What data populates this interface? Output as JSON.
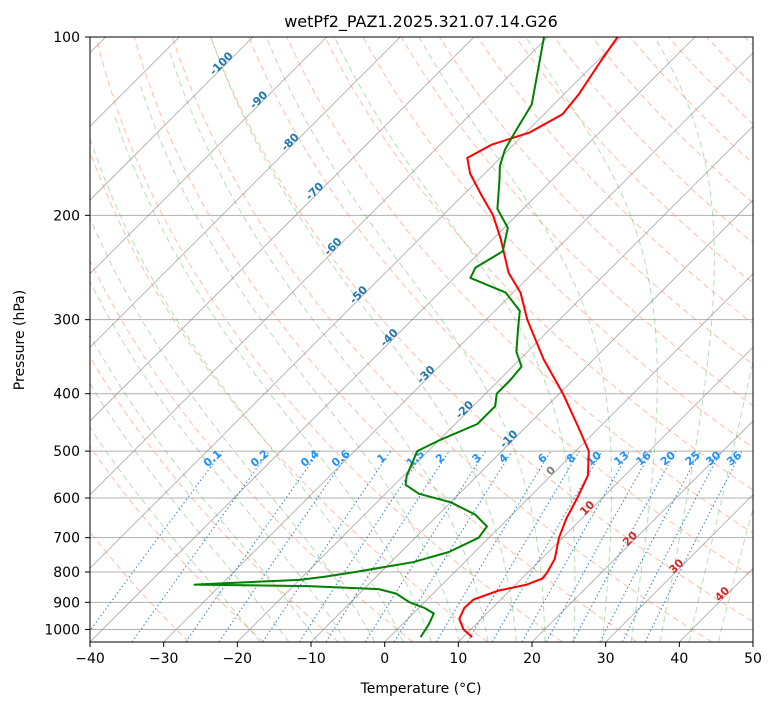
{
  "chart_data": {
    "type": "line",
    "subtype": "skew-t log-p diagram",
    "title": "wetPf2_PAZ1.2025.321.07.14.G26",
    "xlabel": "Temperature (°C)",
    "ylabel": "Pressure (hPa)",
    "xlim": [
      -40,
      50
    ],
    "ylim": [
      1050,
      100
    ],
    "y_scale": "log",
    "grid": true,
    "x_ticks": [
      -40,
      -30,
      -20,
      -10,
      0,
      10,
      20,
      30,
      40,
      50
    ],
    "y_ticks": [
      100,
      200,
      300,
      400,
      500,
      600,
      700,
      800,
      900,
      1000
    ],
    "series": [
      {
        "role": "temperature",
        "color": "#ff0000",
        "points": [
          {
            "p": 1030,
            "t": 11.2
          },
          {
            "p": 1000,
            "t": 9.0
          },
          {
            "p": 960,
            "t": 7.0
          },
          {
            "p": 920,
            "t": 6.2
          },
          {
            "p": 890,
            "t": 6.3
          },
          {
            "p": 860,
            "t": 8.5
          },
          {
            "p": 840,
            "t": 11.5
          },
          {
            "p": 820,
            "t": 12.8
          },
          {
            "p": 800,
            "t": 12.6
          },
          {
            "p": 760,
            "t": 11.8
          },
          {
            "p": 700,
            "t": 9.5
          },
          {
            "p": 650,
            "t": 7.9
          },
          {
            "p": 600,
            "t": 6.6
          },
          {
            "p": 550,
            "t": 5.0
          },
          {
            "p": 500,
            "t": 1.8
          },
          {
            "p": 450,
            "t": -3.5
          },
          {
            "p": 400,
            "t": -9.5
          },
          {
            "p": 350,
            "t": -16.8
          },
          {
            "p": 300,
            "t": -24.4
          },
          {
            "p": 270,
            "t": -29.0
          },
          {
            "p": 250,
            "t": -33.3
          },
          {
            "p": 220,
            "t": -38.8
          },
          {
            "p": 200,
            "t": -43.2
          },
          {
            "p": 185,
            "t": -47.5
          },
          {
            "p": 170,
            "t": -52.0
          },
          {
            "p": 160,
            "t": -54.5
          },
          {
            "p": 152,
            "t": -53.0
          },
          {
            "p": 145,
            "t": -49.5
          },
          {
            "p": 135,
            "t": -47.5
          },
          {
            "p": 125,
            "t": -48.0
          },
          {
            "p": 110,
            "t": -49.5
          },
          {
            "p": 100,
            "t": -50.5
          }
        ]
      },
      {
        "role": "dewpoint",
        "color": "#008000",
        "points": [
          {
            "p": 1030,
            "t": 4.2
          },
          {
            "p": 980,
            "t": 3.6
          },
          {
            "p": 940,
            "t": 2.8
          },
          {
            "p": 920,
            "t": 0.8
          },
          {
            "p": 900,
            "t": -2.0
          },
          {
            "p": 870,
            "t": -5.0
          },
          {
            "p": 855,
            "t": -8.0
          },
          {
            "p": 845,
            "t": -18.0
          },
          {
            "p": 840,
            "t": -33.6
          },
          {
            "p": 835,
            "t": -29.0
          },
          {
            "p": 825,
            "t": -20.0
          },
          {
            "p": 815,
            "t": -17.0
          },
          {
            "p": 800,
            "t": -13.5
          },
          {
            "p": 770,
            "t": -7.0
          },
          {
            "p": 740,
            "t": -3.5
          },
          {
            "p": 700,
            "t": -1.4
          },
          {
            "p": 670,
            "t": -1.8
          },
          {
            "p": 640,
            "t": -5.0
          },
          {
            "p": 610,
            "t": -10.0
          },
          {
            "p": 590,
            "t": -15.5
          },
          {
            "p": 570,
            "t": -18.5
          },
          {
            "p": 550,
            "t": -19.6
          },
          {
            "p": 520,
            "t": -20.7
          },
          {
            "p": 500,
            "t": -21.5
          },
          {
            "p": 480,
            "t": -20.0
          },
          {
            "p": 450,
            "t": -17.0
          },
          {
            "p": 420,
            "t": -17.0
          },
          {
            "p": 400,
            "t": -18.5
          },
          {
            "p": 380,
            "t": -18.5
          },
          {
            "p": 360,
            "t": -18.8
          },
          {
            "p": 340,
            "t": -21.5
          },
          {
            "p": 310,
            "t": -24.5
          },
          {
            "p": 290,
            "t": -26.6
          },
          {
            "p": 270,
            "t": -31.0
          },
          {
            "p": 255,
            "t": -37.8
          },
          {
            "p": 245,
            "t": -38.5
          },
          {
            "p": 230,
            "t": -37.0
          },
          {
            "p": 210,
            "t": -39.5
          },
          {
            "p": 195,
            "t": -43.5
          },
          {
            "p": 175,
            "t": -47.0
          },
          {
            "p": 165,
            "t": -49.0
          },
          {
            "p": 155,
            "t": -50.5
          },
          {
            "p": 145,
            "t": -51.5
          },
          {
            "p": 130,
            "t": -53.0
          },
          {
            "p": 115,
            "t": -56.5
          },
          {
            "p": 100,
            "t": -60.5
          }
        ]
      }
    ],
    "dry_adiabat_labels": [
      "-100",
      "-90",
      "-80",
      "-70",
      "-60",
      "-50",
      "-40",
      "-30",
      "-20",
      "-10"
    ],
    "mixing_ratio_labels": [
      "0.1",
      "0.2",
      "0.4",
      "0.6",
      "1",
      "1.5",
      "2",
      "3",
      "4",
      "6",
      "8",
      "10",
      "13",
      "16",
      "20",
      "25",
      "30",
      "36"
    ],
    "moist_adiabat_labels": [
      "0",
      "10",
      "20",
      "30",
      "40"
    ],
    "colors": {
      "temperature": "#ff0000",
      "dewpoint": "#008000",
      "isotherm": "#808080",
      "dry_adiabat": "#ff7f50",
      "moist_adiabat": "#2ca02c",
      "mixing_ratio": "#1f77b4",
      "dry_label": "#1f77b4",
      "mixing_label": "#1e90ff",
      "moist_label": "#d62728"
    }
  }
}
